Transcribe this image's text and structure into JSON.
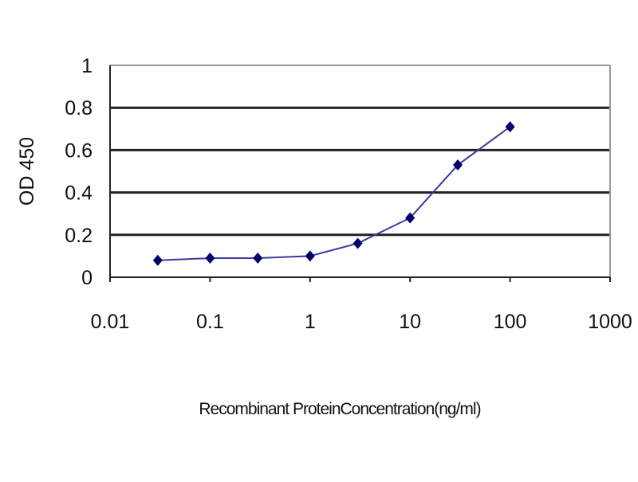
{
  "chart_data": {
    "type": "line",
    "title": "",
    "xlabel": "Recombinant ProteinConcentration(ng/ml)",
    "ylabel": "OD 450",
    "xscale": "log",
    "xlim": [
      0.01,
      1000
    ],
    "ylim": [
      0,
      1
    ],
    "xticks": [
      "0.01",
      "0.1",
      "1",
      "10",
      "100",
      "1000"
    ],
    "yticks": [
      "0",
      "0.2",
      "0.4",
      "0.6",
      "0.8",
      "1"
    ],
    "grid": "horizontal",
    "series": [
      {
        "x": [
          0.03,
          0.1,
          0.3,
          1,
          3,
          10,
          30,
          100
        ],
        "y": [
          0.08,
          0.09,
          0.09,
          0.1,
          0.16,
          0.28,
          0.53,
          0.71
        ],
        "color": "#000066",
        "line_color": "#3a3aa0",
        "marker": "diamond"
      }
    ]
  }
}
